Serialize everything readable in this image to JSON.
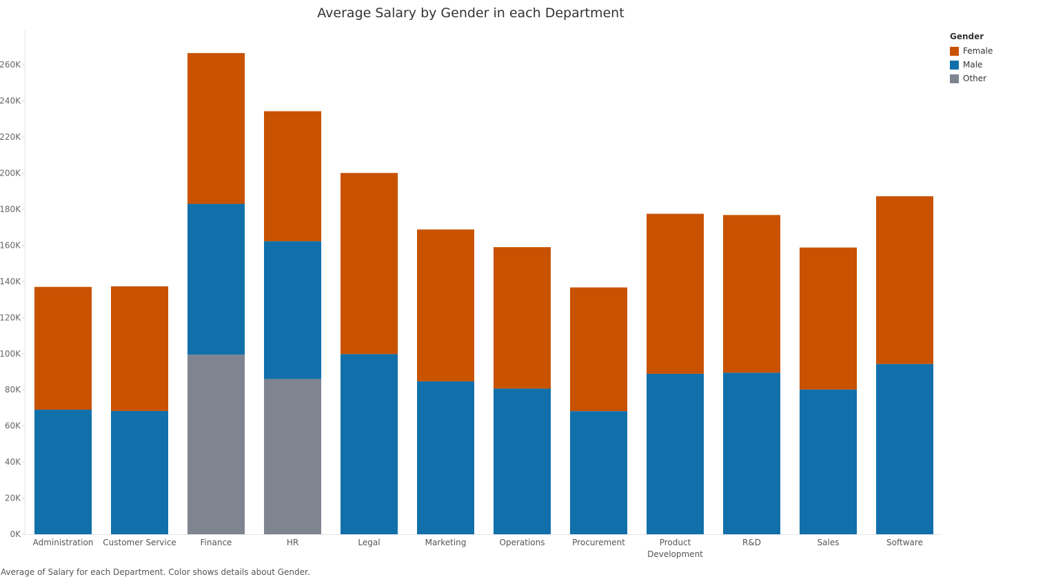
{
  "chart_data": {
    "type": "bar",
    "stacked": true,
    "title": "Average Salary by Gender in each Department",
    "xlabel": "",
    "ylabel": "",
    "ylim": [
      0,
      275000
    ],
    "yticks": [
      0,
      20000,
      40000,
      60000,
      80000,
      100000,
      120000,
      140000,
      160000,
      180000,
      200000,
      220000,
      240000,
      260000
    ],
    "ytick_labels": [
      "0K",
      "20K",
      "40K",
      "60K",
      "80K",
      "100K",
      "120K",
      "140K",
      "160K",
      "180K",
      "200K",
      "220K",
      "240K",
      "260K"
    ],
    "categories": [
      "Administration",
      "Customer Service",
      "Finance",
      "HR",
      "Legal",
      "Marketing",
      "Operations",
      "Procurement",
      "Product Development",
      "R&D",
      "Sales",
      "Software"
    ],
    "category_lines": [
      [
        "Administration"
      ],
      [
        "Customer Service"
      ],
      [
        "Finance"
      ],
      [
        "HR"
      ],
      [
        "Legal"
      ],
      [
        "Marketing"
      ],
      [
        "Operations"
      ],
      [
        "Procurement"
      ],
      [
        "Product",
        "Development"
      ],
      [
        "R&D"
      ],
      [
        "Sales"
      ],
      [
        "Software"
      ]
    ],
    "series": [
      {
        "name": "Other",
        "color": "#7f8590",
        "values": [
          0,
          0,
          99500,
          86000,
          0,
          0,
          0,
          0,
          0,
          0,
          0,
          0
        ]
      },
      {
        "name": "Male",
        "color": "#1170aa",
        "values": [
          69000,
          68300,
          83500,
          76300,
          99800,
          84700,
          80700,
          68200,
          88900,
          89500,
          80200,
          94300
        ]
      },
      {
        "name": "Female",
        "color": "#c85200",
        "values": [
          68000,
          69000,
          83500,
          72000,
          100300,
          84100,
          78300,
          68500,
          88600,
          87300,
          78600,
          92900
        ]
      }
    ],
    "grid": false,
    "legend_position": "top-right"
  },
  "legend": {
    "title": "Gender",
    "items": [
      {
        "label": "Female",
        "color": "#c85200"
      },
      {
        "label": "Male",
        "color": "#1170aa"
      },
      {
        "label": "Other",
        "color": "#7f8590"
      }
    ]
  },
  "caption": "Average of Salary for each Department.  Color shows details about Gender."
}
